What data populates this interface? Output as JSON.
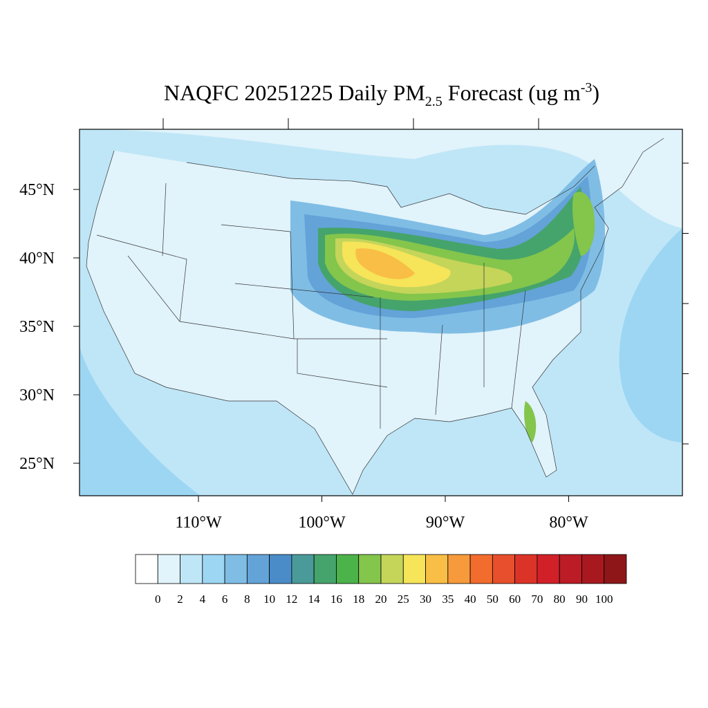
{
  "map": {
    "title": {
      "main": "NAQFC 20251225 Daily PM",
      "sub": "2.5",
      "mid": " Forecast (ug m",
      "sup": "-3",
      "end": ")"
    },
    "lat_ticks": [
      {
        "value": 45,
        "label": "45°N"
      },
      {
        "value": 40,
        "label": "40°N"
      },
      {
        "value": 35,
        "label": "35°N"
      },
      {
        "value": 30,
        "label": "30°N"
      },
      {
        "value": 25,
        "label": "25°N"
      }
    ],
    "lon_ticks": [
      {
        "value": -110,
        "label": "110°W"
      },
      {
        "value": -100,
        "label": "100°W"
      },
      {
        "value": -90,
        "label": "90°W"
      },
      {
        "value": -80,
        "label": "80°W"
      }
    ],
    "colorbar": {
      "levels": [
        0,
        2,
        4,
        6,
        8,
        10,
        12,
        14,
        16,
        18,
        20,
        25,
        30,
        35,
        40,
        50,
        60,
        70,
        80,
        90,
        100
      ],
      "colors": [
        "#ffffff",
        "#e1f3fb",
        "#bfe6f7",
        "#9dd6f3",
        "#7fbde5",
        "#63a3d8",
        "#4a8cc8",
        "#4a9a9a",
        "#45a46c",
        "#4cb34a",
        "#84c54c",
        "#c4d55a",
        "#f6e459",
        "#f8be45",
        "#f69a3c",
        "#f16c2d",
        "#e84f2c",
        "#dc3329",
        "#d22029",
        "#bb1c25",
        "#a8191f",
        "#8e1619"
      ]
    }
  }
}
